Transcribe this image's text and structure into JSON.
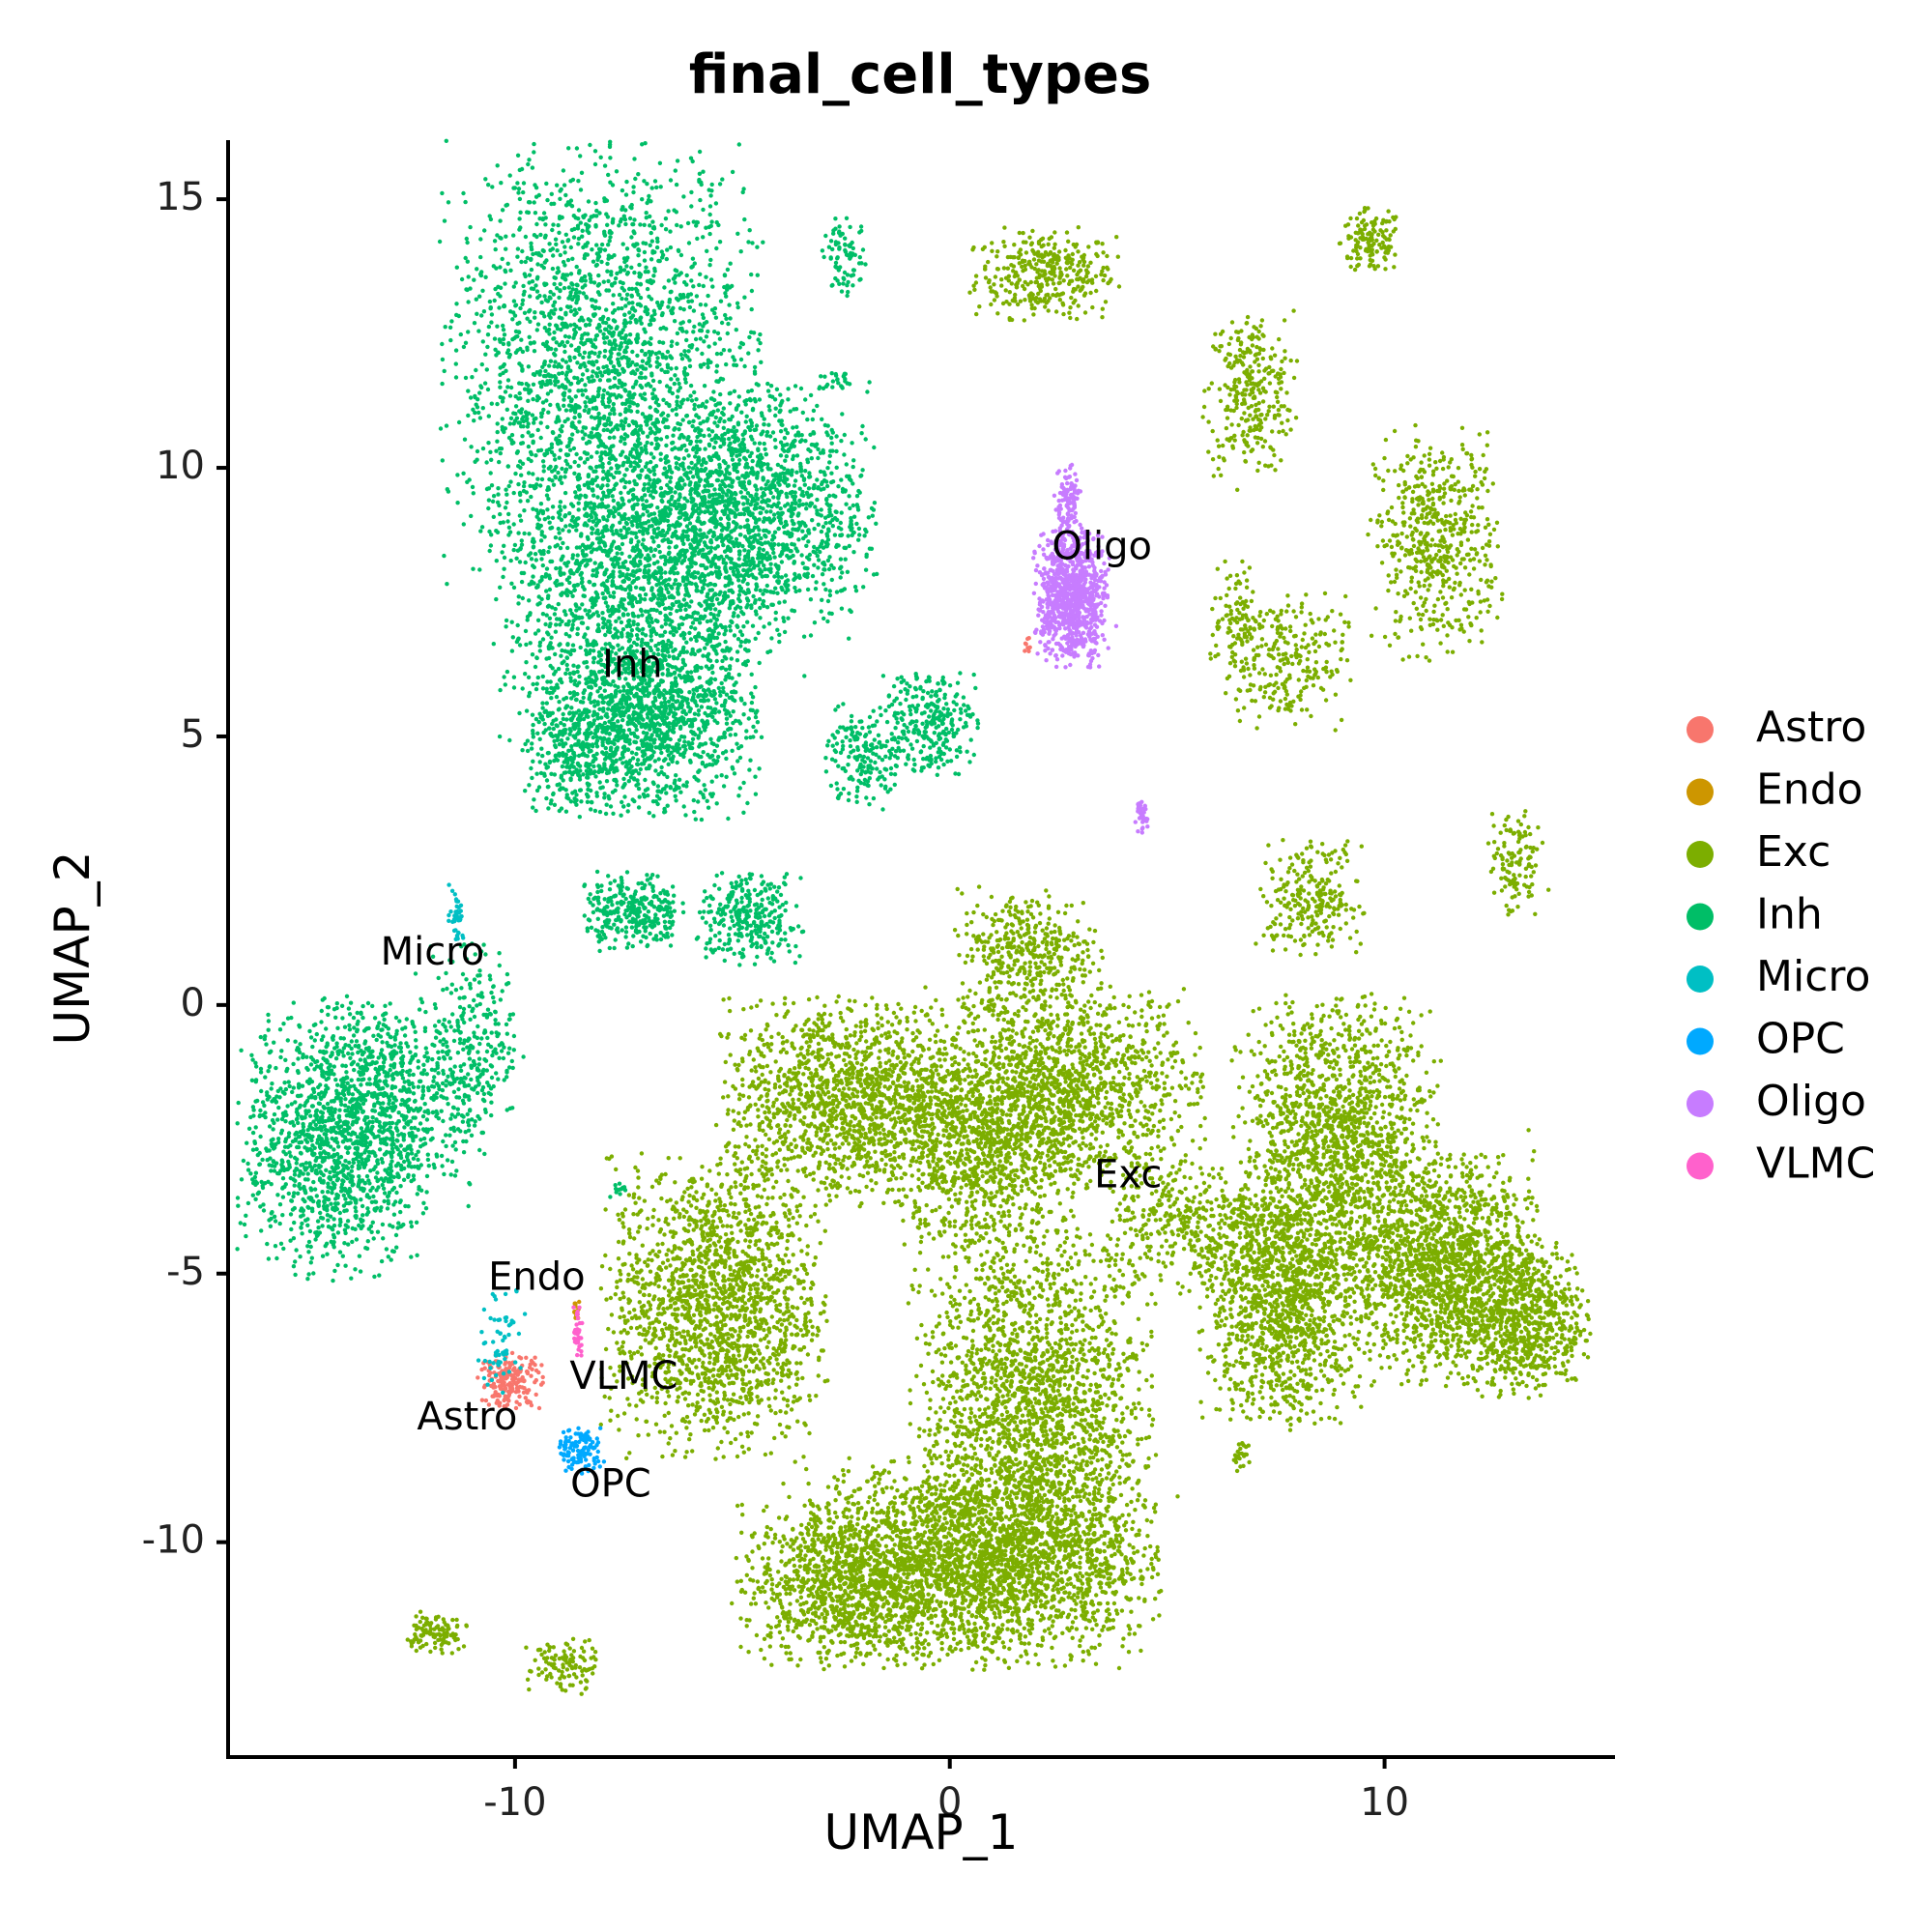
{
  "chart_data": {
    "type": "scatter",
    "title": "final_cell_types",
    "xlabel": "UMAP_1",
    "ylabel": "UMAP_2",
    "xlim": [
      -16.6,
      15.3
    ],
    "ylim": [
      -14,
      16.1
    ],
    "x_ticks": [
      -10,
      0,
      10
    ],
    "x_tick_labels": [
      "-10",
      "0",
      "10"
    ],
    "y_ticks": [
      -10,
      -5,
      0,
      5,
      10,
      15
    ],
    "y_tick_labels": [
      "-10",
      "-5",
      "0",
      "5",
      "10",
      "15"
    ],
    "grid": false,
    "legend_position": "right",
    "series": [
      {
        "name": "Astro",
        "color": "#F8766D"
      },
      {
        "name": "Endo",
        "color": "#CD9600"
      },
      {
        "name": "Exc",
        "color": "#7CAE00"
      },
      {
        "name": "Inh",
        "color": "#00BE67"
      },
      {
        "name": "Micro",
        "color": "#00BFC4"
      },
      {
        "name": "OPC",
        "color": "#00A9FF"
      },
      {
        "name": "Oligo",
        "color": "#C77CFF"
      },
      {
        "name": "VLMC",
        "color": "#FF61CC"
      }
    ],
    "cluster_labels": [
      {
        "text": "Inh",
        "x": -7.3,
        "y": 6.3
      },
      {
        "text": "Oligo",
        "x": 3.5,
        "y": 8.5
      },
      {
        "text": "Micro",
        "x": -11.9,
        "y": 0.95
      },
      {
        "text": "Exc",
        "x": 4.1,
        "y": -3.2
      },
      {
        "text": "Endo",
        "x": -9.5,
        "y": -5.1
      },
      {
        "text": "VLMC",
        "x": -7.5,
        "y": -6.95
      },
      {
        "text": "Astro",
        "x": -11.1,
        "y": -7.7
      },
      {
        "text": "OPC",
        "x": -7.8,
        "y": -8.95
      }
    ],
    "clusters": [
      {
        "type": "Inh",
        "x": -8.0,
        "y": 11.8,
        "sx": 1.7,
        "sy": 2.0,
        "n": 2400
      },
      {
        "type": "Inh",
        "x": -4.7,
        "y": 9.2,
        "sx": 1.4,
        "sy": 1.1,
        "n": 1600
      },
      {
        "type": "Inh",
        "x": -7.2,
        "y": 7.4,
        "sx": 1.5,
        "sy": 1.4,
        "n": 1500
      },
      {
        "type": "Inh",
        "x": -7.0,
        "y": 5.2,
        "sx": 1.2,
        "sy": 0.8,
        "n": 1100
      },
      {
        "type": "Inh",
        "x": -8.6,
        "y": 4.6,
        "sx": 0.6,
        "sy": 0.5,
        "n": 200
      },
      {
        "type": "Inh",
        "x": -2.4,
        "y": 13.9,
        "sx": 0.25,
        "sy": 0.35,
        "n": 80
      },
      {
        "type": "Inh",
        "x": -2.6,
        "y": 11.6,
        "sx": 0.2,
        "sy": 0.1,
        "n": 25
      },
      {
        "type": "Inh",
        "x": -0.5,
        "y": 5.3,
        "sx": 0.55,
        "sy": 0.5,
        "n": 280
      },
      {
        "type": "Inh",
        "x": -2.0,
        "y": 4.6,
        "sx": 0.4,
        "sy": 0.5,
        "n": 180
      },
      {
        "type": "Inh",
        "x": -14.2,
        "y": -2.5,
        "sx": 1.0,
        "sy": 1.2,
        "n": 1300
      },
      {
        "type": "Inh",
        "x": -12.6,
        "y": -1.8,
        "sx": 0.9,
        "sy": 0.9,
        "n": 500
      },
      {
        "type": "Inh",
        "x": -10.9,
        "y": -0.6,
        "sx": 0.5,
        "sy": 0.8,
        "n": 250
      },
      {
        "type": "Inh",
        "x": -7.3,
        "y": 1.75,
        "sx": 0.55,
        "sy": 0.35,
        "n": 300
      },
      {
        "type": "Inh",
        "x": -4.6,
        "y": 1.6,
        "sx": 0.6,
        "sy": 0.4,
        "n": 300
      },
      {
        "type": "Inh",
        "x": -7.6,
        "y": -3.4,
        "sx": 0.1,
        "sy": 0.1,
        "n": 12
      },
      {
        "type": "Exc",
        "x": 2.2,
        "y": 13.6,
        "sx": 0.8,
        "sy": 0.4,
        "n": 350
      },
      {
        "type": "Exc",
        "x": 9.7,
        "y": 14.2,
        "sx": 0.35,
        "sy": 0.3,
        "n": 130
      },
      {
        "type": "Exc",
        "x": 6.9,
        "y": 11.4,
        "sx": 0.5,
        "sy": 0.75,
        "n": 300
      },
      {
        "type": "Exc",
        "x": 11.2,
        "y": 8.6,
        "sx": 0.7,
        "sy": 1.0,
        "n": 550
      },
      {
        "type": "Exc",
        "x": 7.7,
        "y": 6.4,
        "sx": 0.7,
        "sy": 0.6,
        "n": 250
      },
      {
        "type": "Exc",
        "x": 6.6,
        "y": 7.2,
        "sx": 0.3,
        "sy": 0.5,
        "n": 100
      },
      {
        "type": "Exc",
        "x": 1.8,
        "y": 1.0,
        "sx": 0.8,
        "sy": 0.55,
        "n": 400
      },
      {
        "type": "Exc",
        "x": -2.3,
        "y": -1.8,
        "sx": 1.4,
        "sy": 0.9,
        "n": 1500
      },
      {
        "type": "Exc",
        "x": 2.6,
        "y": -1.6,
        "sx": 1.5,
        "sy": 0.9,
        "n": 1500
      },
      {
        "type": "Exc",
        "x": 0.7,
        "y": -2.8,
        "sx": 1.0,
        "sy": 0.9,
        "n": 700
      },
      {
        "type": "Exc",
        "x": -5.4,
        "y": -5.6,
        "sx": 1.2,
        "sy": 1.3,
        "n": 1800
      },
      {
        "type": "Exc",
        "x": 1.9,
        "y": -7.6,
        "sx": 1.3,
        "sy": 1.7,
        "n": 2200
      },
      {
        "type": "Exc",
        "x": 0.5,
        "y": -10.4,
        "sx": 2.0,
        "sy": 0.9,
        "n": 2600
      },
      {
        "type": "Exc",
        "x": -2.6,
        "y": -10.8,
        "sx": 1.1,
        "sy": 0.7,
        "n": 800
      },
      {
        "type": "Exc",
        "x": 8.9,
        "y": -2.6,
        "sx": 1.1,
        "sy": 1.3,
        "n": 1600
      },
      {
        "type": "Exc",
        "x": 7.7,
        "y": -5.5,
        "sx": 0.9,
        "sy": 1.1,
        "n": 1300
      },
      {
        "type": "Exc",
        "x": 11.4,
        "y": -4.9,
        "sx": 1.0,
        "sy": 1.0,
        "n": 1500
      },
      {
        "type": "Exc",
        "x": 13.2,
        "y": -5.8,
        "sx": 0.7,
        "sy": 0.7,
        "n": 700
      },
      {
        "type": "Exc",
        "x": 5.5,
        "y": -4.2,
        "sx": 0.9,
        "sy": 0.6,
        "n": 350
      },
      {
        "type": "Exc",
        "x": 8.3,
        "y": 2.0,
        "sx": 0.6,
        "sy": 0.5,
        "n": 250
      },
      {
        "type": "Exc",
        "x": 13.0,
        "y": 2.6,
        "sx": 0.3,
        "sy": 0.5,
        "n": 120
      },
      {
        "type": "Exc",
        "x": -11.8,
        "y": -11.7,
        "sx": 0.35,
        "sy": 0.2,
        "n": 110
      },
      {
        "type": "Exc",
        "x": -8.9,
        "y": -12.3,
        "sx": 0.4,
        "sy": 0.25,
        "n": 110
      },
      {
        "type": "Exc",
        "x": 6.7,
        "y": -8.4,
        "sx": 0.1,
        "sy": 0.15,
        "n": 25
      },
      {
        "type": "Oligo",
        "x": 2.8,
        "y": 7.6,
        "sx": 0.4,
        "sy": 0.6,
        "n": 900
      },
      {
        "type": "Oligo",
        "x": 2.7,
        "y": 9.3,
        "sx": 0.15,
        "sy": 0.35,
        "n": 120
      },
      {
        "type": "Oligo",
        "x": 4.4,
        "y": 3.5,
        "sx": 0.07,
        "sy": 0.15,
        "n": 40
      },
      {
        "type": "Micro",
        "x": -11.35,
        "y": 1.7,
        "sx": 0.08,
        "sy": 0.25,
        "n": 40
      },
      {
        "type": "Micro",
        "x": -10.3,
        "y": -6.2,
        "sx": 0.25,
        "sy": 0.5,
        "n": 60
      },
      {
        "type": "Astro",
        "x": -10.1,
        "y": -7.0,
        "sx": 0.35,
        "sy": 0.25,
        "n": 200
      },
      {
        "type": "Astro",
        "x": 1.8,
        "y": 6.7,
        "sx": 0.05,
        "sy": 0.1,
        "n": 8
      },
      {
        "type": "Endo",
        "x": -8.6,
        "y": -5.7,
        "sx": 0.05,
        "sy": 0.1,
        "n": 15
      },
      {
        "type": "VLMC",
        "x": -8.55,
        "y": -6.1,
        "sx": 0.05,
        "sy": 0.3,
        "n": 35
      },
      {
        "type": "OPC",
        "x": -8.5,
        "y": -8.3,
        "sx": 0.25,
        "sy": 0.2,
        "n": 120
      }
    ]
  }
}
